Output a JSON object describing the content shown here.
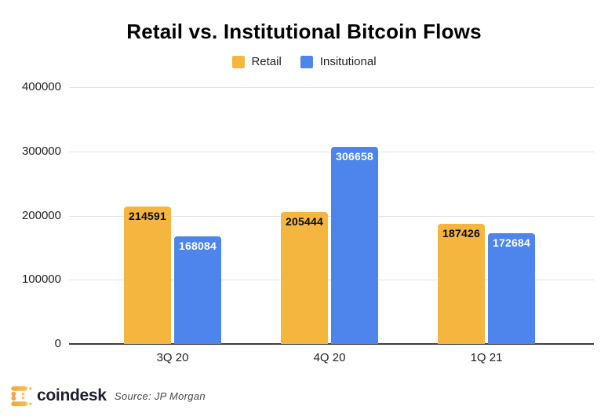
{
  "title": "Retail vs. Institutional Bitcoin Flows",
  "chart_data": {
    "type": "bar",
    "title": "Retail vs. Institutional Bitcoin Flows",
    "categories": [
      "3Q 20",
      "4Q 20",
      "1Q 21"
    ],
    "series": [
      {
        "name": "Retail",
        "color": "#F4B63F",
        "label_color": "#0a0a0a",
        "values": [
          214591,
          205444,
          187426
        ]
      },
      {
        "name": "Insitutional",
        "color": "#4D85EC",
        "label_color": "#ffffff",
        "values": [
          168084,
          306658,
          172684
        ]
      }
    ],
    "xlabel": "",
    "ylabel": "",
    "yticks": [
      0,
      100000,
      200000,
      300000,
      400000
    ],
    "ylim": [
      0,
      400000
    ],
    "grid": true,
    "legend_position": "top"
  },
  "footer": {
    "brand": "coindesk",
    "source": "Source: JP Morgan"
  },
  "colors": {
    "retail": "#F4B63F",
    "institutional": "#4D85EC",
    "gridline": "#e2e2e2",
    "axis_line": "#3d3d3d",
    "logo_orange": "#F2A43C",
    "logo_yellow": "#F7C44C"
  }
}
